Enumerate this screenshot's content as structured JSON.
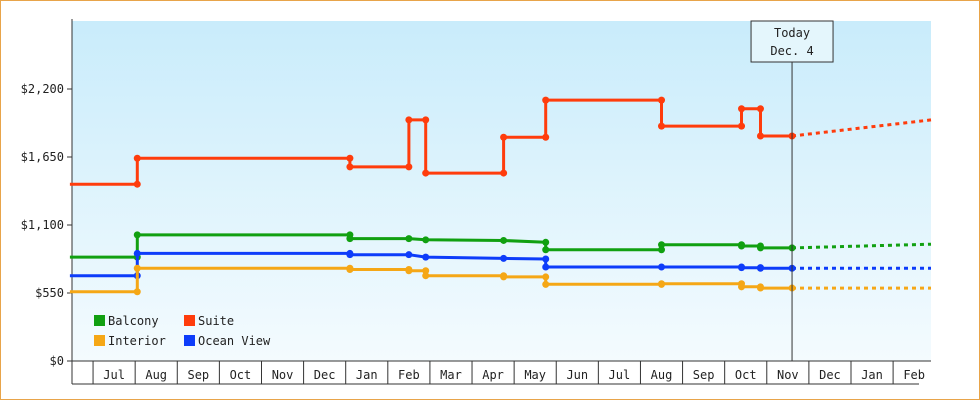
{
  "chart_data": {
    "type": "line",
    "title": "",
    "xlabel": "",
    "ylabel": "",
    "ylim": [
      0,
      2750
    ],
    "y_ticks": [
      {
        "value": 0,
        "label": "$0"
      },
      {
        "value": 550,
        "label": "$550"
      },
      {
        "value": 1100,
        "label": "$1,100"
      },
      {
        "value": 1650,
        "label": "$1,650"
      },
      {
        "value": 2200,
        "label": "$2,200"
      }
    ],
    "x_months": [
      "Jul",
      "Aug",
      "Sep",
      "Oct",
      "Nov",
      "Dec",
      "Jan",
      "Feb",
      "Mar",
      "Apr",
      "May",
      "Jun",
      "Jul",
      "Aug",
      "Sep",
      "Oct",
      "Nov",
      "Dec",
      "Jan",
      "Feb"
    ],
    "x_range": [
      0,
      20.4
    ],
    "today_marker": {
      "x": 17.1,
      "line1": "Today",
      "line2": "Dec. 4"
    },
    "legend": [
      {
        "name": "Balcony",
        "color": "#11a011"
      },
      {
        "name": "Suite",
        "color": "#ff3c0c"
      },
      {
        "name": "Interior",
        "color": "#f5a716"
      },
      {
        "name": "Ocean View",
        "color": "#0d3cfa"
      }
    ],
    "grid": false,
    "series": [
      {
        "name": "Suite",
        "color": "#ff3c0c",
        "points": [
          [
            -0.05,
            1430
          ],
          [
            1.55,
            1430
          ],
          [
            1.55,
            1640
          ],
          [
            6.6,
            1640
          ],
          [
            6.6,
            1570
          ],
          [
            8.0,
            1570
          ],
          [
            8.0,
            1950
          ],
          [
            8.4,
            1950
          ],
          [
            8.4,
            1520
          ],
          [
            10.25,
            1520
          ],
          [
            10.25,
            1810
          ],
          [
            11.25,
            1810
          ],
          [
            11.25,
            2110
          ],
          [
            14.0,
            2110
          ],
          [
            14.0,
            1900
          ],
          [
            15.9,
            1900
          ],
          [
            15.9,
            2040
          ],
          [
            16.35,
            2040
          ],
          [
            16.35,
            1820
          ],
          [
            17.1,
            1820
          ]
        ],
        "forecast": [
          [
            17.1,
            1820
          ],
          [
            20.4,
            1950
          ]
        ]
      },
      {
        "name": "Balcony",
        "color": "#11a011",
        "points": [
          [
            -0.05,
            840
          ],
          [
            1.55,
            840
          ],
          [
            1.55,
            1020
          ],
          [
            6.6,
            1020
          ],
          [
            6.6,
            990
          ],
          [
            8.0,
            990
          ],
          [
            8.4,
            980
          ],
          [
            10.25,
            975
          ],
          [
            11.25,
            960
          ],
          [
            11.25,
            900
          ],
          [
            14.0,
            900
          ],
          [
            14.0,
            940
          ],
          [
            15.9,
            940
          ],
          [
            15.9,
            930
          ],
          [
            16.35,
            930
          ],
          [
            16.35,
            915
          ],
          [
            17.1,
            915
          ]
        ],
        "forecast": [
          [
            17.1,
            915
          ],
          [
            20.4,
            945
          ]
        ]
      },
      {
        "name": "Ocean View",
        "color": "#0d3cfa",
        "points": [
          [
            -0.05,
            690
          ],
          [
            1.55,
            690
          ],
          [
            1.55,
            870
          ],
          [
            6.6,
            870
          ],
          [
            6.6,
            860
          ],
          [
            8.0,
            860
          ],
          [
            8.4,
            840
          ],
          [
            10.25,
            830
          ],
          [
            11.25,
            825
          ],
          [
            11.25,
            760
          ],
          [
            14.0,
            760
          ],
          [
            15.9,
            760
          ],
          [
            15.9,
            755
          ],
          [
            16.35,
            755
          ],
          [
            16.35,
            750
          ],
          [
            17.1,
            750
          ]
        ],
        "forecast": [
          [
            17.1,
            750
          ],
          [
            20.4,
            750
          ]
        ]
      },
      {
        "name": "Interior",
        "color": "#f5a716",
        "points": [
          [
            -0.05,
            560
          ],
          [
            1.55,
            560
          ],
          [
            1.55,
            750
          ],
          [
            6.6,
            750
          ],
          [
            6.6,
            740
          ],
          [
            8.0,
            740
          ],
          [
            8.0,
            730
          ],
          [
            8.4,
            730
          ],
          [
            8.4,
            690
          ],
          [
            10.25,
            690
          ],
          [
            10.25,
            680
          ],
          [
            11.25,
            680
          ],
          [
            11.25,
            620
          ],
          [
            14.0,
            620
          ],
          [
            14.0,
            625
          ],
          [
            15.9,
            625
          ],
          [
            15.9,
            600
          ],
          [
            16.35,
            600
          ],
          [
            16.35,
            590
          ],
          [
            17.1,
            590
          ]
        ],
        "forecast": [
          [
            17.1,
            590
          ],
          [
            20.4,
            590
          ]
        ]
      }
    ]
  }
}
